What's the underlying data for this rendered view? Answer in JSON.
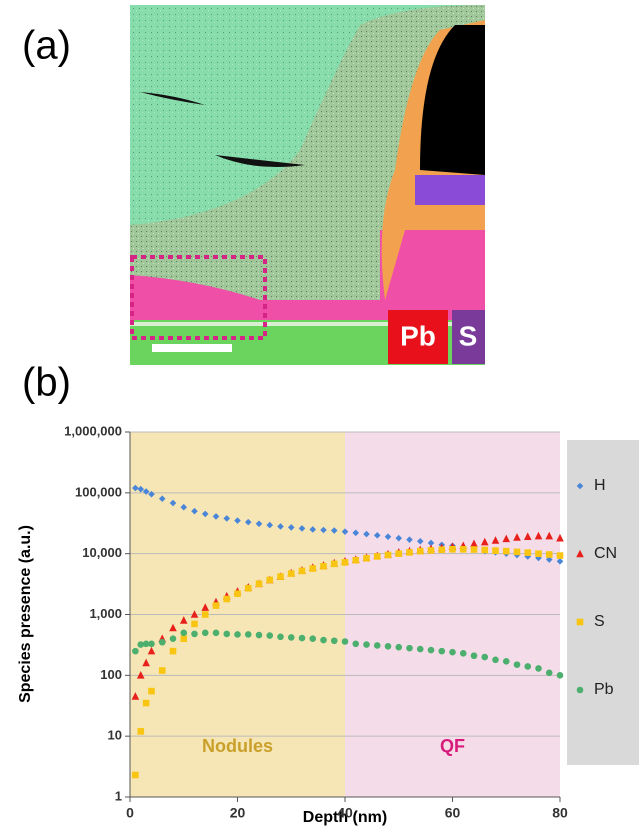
{
  "panel_a": {
    "label": "(a)",
    "element_labels": [
      "Pb",
      "S"
    ]
  },
  "chart_data": {
    "type": "scatter",
    "panel_label": "(b)",
    "xlabel": "Depth (nm)",
    "ylabel": "Species presence (a.u.)",
    "xlim": [
      0,
      80
    ],
    "xticks": [
      0,
      20,
      40,
      60,
      80
    ],
    "ylim": [
      1,
      1000000
    ],
    "yscale": "log",
    "yticks": [
      1,
      10,
      100,
      {
        "value": 1000,
        "label": "1,000"
      },
      {
        "value": 10000,
        "label": "10,000"
      },
      {
        "value": 100000,
        "label": "100,000"
      },
      {
        "value": 1000000,
        "label": "1,000,000"
      }
    ],
    "grid": true,
    "legend": "right",
    "regions": [
      {
        "label": "Nodules",
        "x": [
          0,
          40
        ],
        "color": "#f7e6b5",
        "text_color": "#c9a02a"
      },
      {
        "label": "QF",
        "x": [
          40,
          80
        ],
        "color": "#f5dce9",
        "text_color": "#d81b7a"
      }
    ],
    "x": [
      1,
      2,
      3,
      4,
      6,
      8,
      10,
      12,
      14,
      16,
      18,
      20,
      22,
      24,
      26,
      28,
      30,
      32,
      34,
      36,
      38,
      40,
      42,
      44,
      46,
      48,
      50,
      52,
      54,
      56,
      58,
      60,
      62,
      64,
      66,
      68,
      70,
      72,
      74,
      76,
      78,
      80
    ],
    "series": [
      {
        "name": "H",
        "color": "#4a86d8",
        "marker": "diamond",
        "values": [
          120000,
          115000,
          105000,
          95000,
          80000,
          68000,
          58000,
          50000,
          45000,
          41000,
          38000,
          35000,
          33000,
          31000,
          29500,
          28000,
          27000,
          26000,
          25000,
          24500,
          24000,
          23000,
          22000,
          21000,
          20000,
          19000,
          18000,
          17000,
          16000,
          15000,
          14000,
          13500,
          12500,
          12000,
          11000,
          10500,
          10000,
          9500,
          9000,
          8500,
          8000,
          7500
        ]
      },
      {
        "name": "CN",
        "color": "#e8201c",
        "marker": "triangle",
        "values": [
          45,
          100,
          160,
          250,
          400,
          600,
          800,
          1000,
          1300,
          1600,
          2000,
          2400,
          2800,
          3200,
          3700,
          4200,
          4800,
          5300,
          5900,
          6400,
          7000,
          7500,
          8000,
          8600,
          9200,
          9800,
          10500,
          11000,
          11500,
          12000,
          12500,
          13000,
          13500,
          14500,
          15500,
          16500,
          17500,
          18500,
          19000,
          19500,
          19500,
          18000
        ]
      },
      {
        "name": "S",
        "color": "#f9c513",
        "marker": "square",
        "values": [
          2.3,
          12,
          35,
          55,
          120,
          250,
          400,
          700,
          1000,
          1400,
          1800,
          2200,
          2700,
          3200,
          3700,
          4200,
          4700,
          5200,
          5700,
          6200,
          6800,
          7200,
          7800,
          8400,
          9000,
          9500,
          10000,
          10500,
          11000,
          11300,
          11600,
          11800,
          11800,
          11700,
          11500,
          11200,
          11000,
          10700,
          10400,
          10000,
          9700,
          9300
        ]
      },
      {
        "name": "Pb",
        "color": "#4caf6e",
        "marker": "circle",
        "values": [
          250,
          320,
          330,
          330,
          350,
          400,
          500,
          480,
          500,
          500,
          480,
          470,
          470,
          460,
          450,
          430,
          420,
          410,
          400,
          380,
          370,
          360,
          330,
          320,
          310,
          300,
          290,
          280,
          270,
          260,
          250,
          240,
          230,
          210,
          200,
          180,
          170,
          150,
          140,
          130,
          110,
          100
        ]
      }
    ]
  }
}
